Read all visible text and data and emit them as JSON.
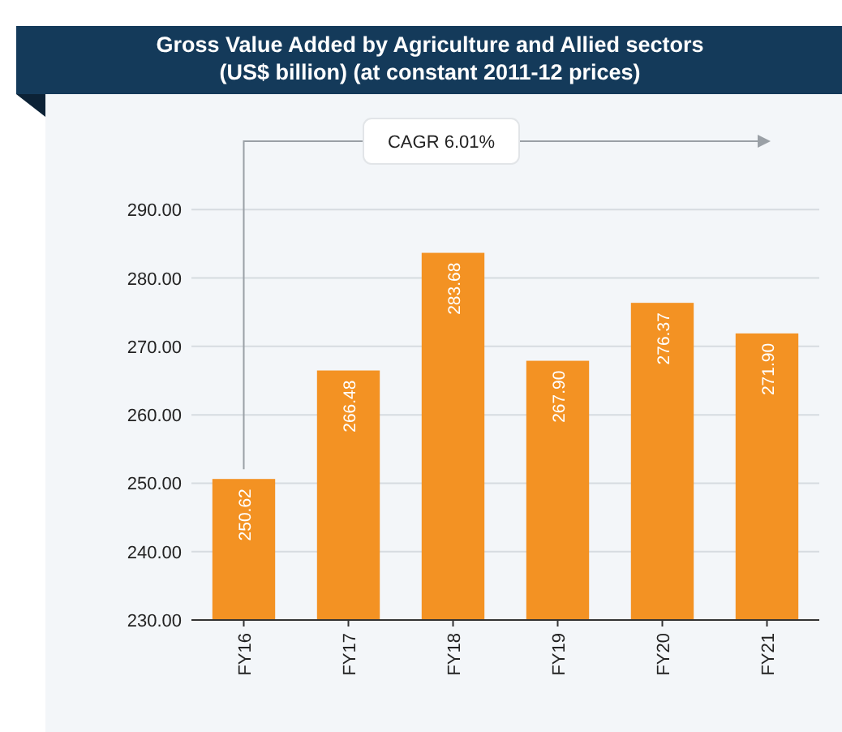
{
  "chart_data": {
    "type": "bar",
    "title": "Gross Value Added by Agriculture and Allied sectors\n(US$ billion) (at constant 2011-12 prices)",
    "categories": [
      "FY16",
      "FY17",
      "FY18",
      "FY19",
      "FY20",
      "FY21"
    ],
    "values": [
      250.62,
      266.48,
      283.68,
      267.9,
      276.37,
      271.9
    ],
    "value_labels": [
      "250.62",
      "266.48",
      "283.68",
      "267.90",
      "276.37",
      "271.90"
    ],
    "color": "#f39223",
    "ylim": [
      230,
      300
    ],
    "yticks": [
      {
        "value": 230,
        "label": "230.00"
      },
      {
        "value": 240,
        "label": "240.00"
      },
      {
        "value": 250,
        "label": "250.00"
      },
      {
        "value": 260,
        "label": "260.00"
      },
      {
        "value": 270,
        "label": "270.00"
      },
      {
        "value": 280,
        "label": "280.00"
      },
      {
        "value": 290,
        "label": "290.00"
      }
    ],
    "grid": "y",
    "annotations": [
      "CAGR 6.01%"
    ]
  }
}
